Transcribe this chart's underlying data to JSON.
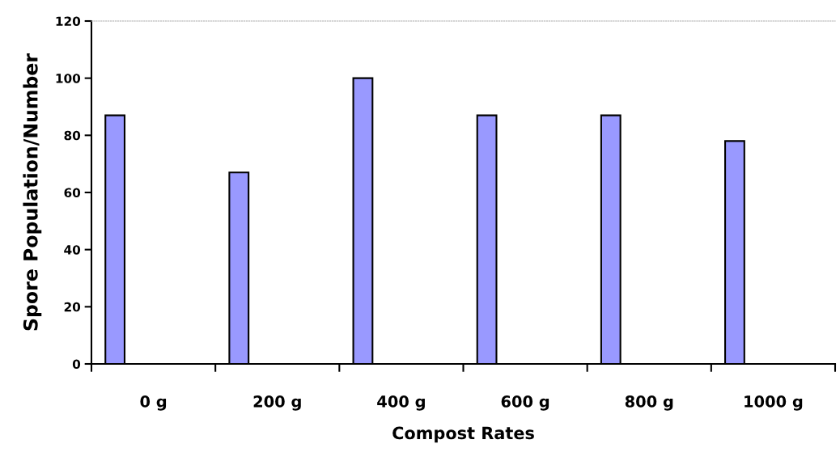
{
  "chart_data": {
    "type": "bar",
    "xlabel": "Compost Rates",
    "ylabel": "Spore Population/Number",
    "categories": [
      "0 g",
      "200 g",
      "400 g",
      "600 g",
      "800 g",
      "1000 g"
    ],
    "values": [
      87,
      67,
      100,
      87,
      87,
      78
    ],
    "color": "#9999ff",
    "ylim": [
      0,
      120
    ],
    "yticks": [
      0,
      20,
      40,
      60,
      80,
      100,
      120
    ],
    "grid": false
  }
}
